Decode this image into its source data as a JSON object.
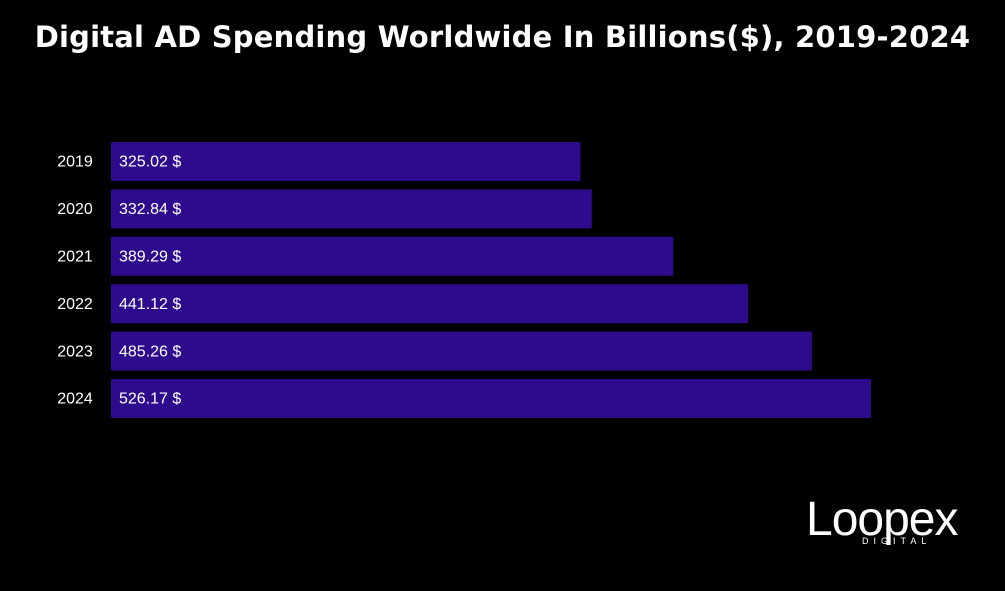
{
  "chart_data": {
    "type": "bar",
    "orientation": "horizontal",
    "title": "Digital AD Spending Worldwide In Billions($), 2019-2024",
    "categories": [
      "2019",
      "2020",
      "2021",
      "2022",
      "2023",
      "2024"
    ],
    "values": [
      325.02,
      332.84,
      389.29,
      441.12,
      485.26,
      526.17
    ],
    "data_labels": [
      "325.02 $",
      "332.84 $",
      "389.29 $",
      "441.12 $",
      "485.26 $",
      "526.17 $"
    ],
    "xlabel": "",
    "ylabel": "",
    "grid": false,
    "legend": "none",
    "colors": {
      "bar": "#2e0b8c",
      "background": "#000000",
      "text": "#ffffff"
    }
  },
  "brand": {
    "name": "Loopex",
    "tagline": "DIGITAL"
  }
}
